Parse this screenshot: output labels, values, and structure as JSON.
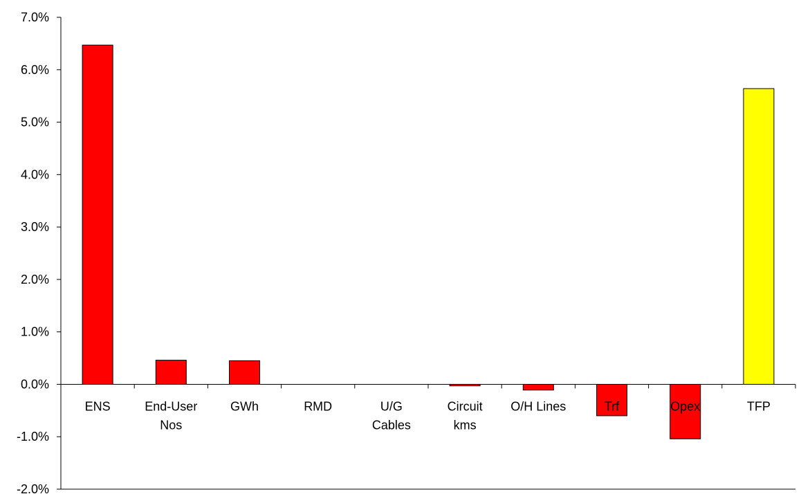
{
  "chart_data": {
    "type": "bar",
    "title": "",
    "xlabel": "",
    "ylabel": "",
    "ylim": [
      -2.0,
      7.0
    ],
    "y_ticks": [
      "-2.0%",
      "-1.0%",
      "0.0%",
      "1.0%",
      "2.0%",
      "3.0%",
      "4.0%",
      "5.0%",
      "6.0%",
      "7.0%"
    ],
    "grid": false,
    "legend": "none",
    "categories": [
      [
        "ENS"
      ],
      [
        "End-User",
        "Nos"
      ],
      [
        "GWh"
      ],
      [
        "RMD"
      ],
      [
        "U/G",
        "Cables"
      ],
      [
        "Circuit",
        "kms"
      ],
      [
        "O/H Lines"
      ],
      [
        "Trf"
      ],
      [
        "Opex"
      ],
      [
        "TFP"
      ]
    ],
    "values": [
      6.47,
      0.46,
      0.45,
      0.0,
      0.0,
      -0.03,
      -0.11,
      -0.6,
      -1.04,
      5.64
    ],
    "bar_colors": [
      "#ff0000",
      "#ff0000",
      "#ff0000",
      "#ff0000",
      "#ff0000",
      "#ff0000",
      "#ff0000",
      "#ff0000",
      "#ff0000",
      "#ffff00"
    ],
    "value_unit": "%"
  }
}
